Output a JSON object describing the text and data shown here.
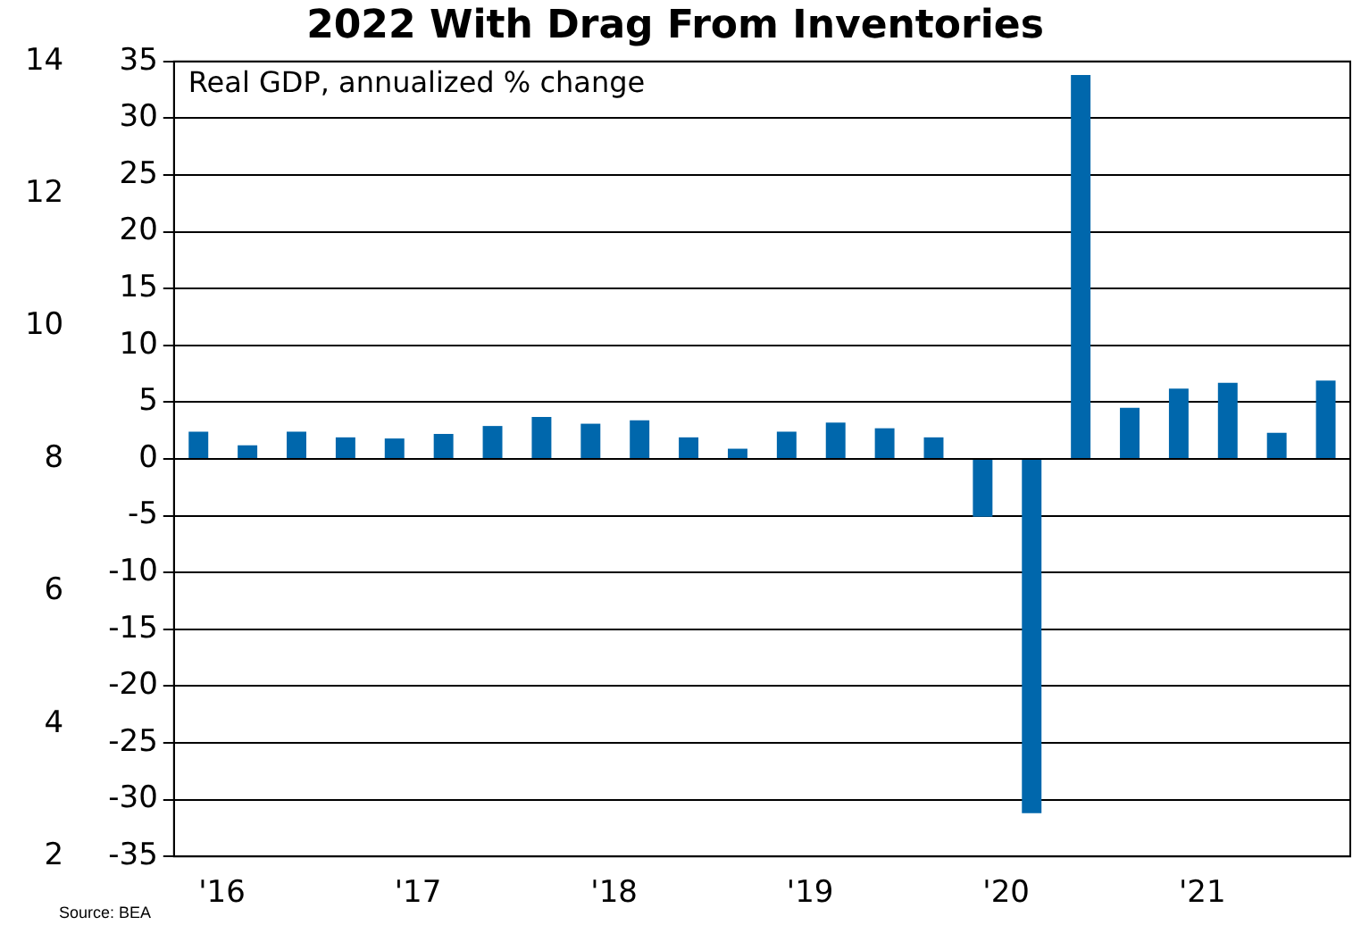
{
  "chart_data": {
    "type": "bar",
    "title": "2022 With Drag From Inventories",
    "categories": [
      "'16",
      null,
      null,
      null,
      "'17",
      null,
      null,
      null,
      "'18",
      null,
      null,
      null,
      "'19",
      null,
      null,
      null,
      "'20",
      null,
      null,
      null,
      "'21",
      null,
      null,
      null
    ],
    "values": [
      2.4,
      1.2,
      2.4,
      1.9,
      1.8,
      2.2,
      2.9,
      3.7,
      3.1,
      3.4,
      1.9,
      0.9,
      2.4,
      3.2,
      2.7,
      1.9,
      -5.1,
      -31.2,
      33.8,
      4.5,
      6.2,
      6.7,
      2.3,
      6.9
    ],
    "color": "#0067ac",
    "ylim": [
      -35,
      35
    ],
    "yticks": [
      -35,
      -30,
      -25,
      -20,
      -15,
      -10,
      -5,
      0,
      5,
      10,
      15,
      20,
      25,
      30,
      35
    ],
    "y2lim": [
      2,
      14
    ],
    "y2ticks": [
      2,
      4,
      6,
      8,
      10,
      12,
      14
    ],
    "grid": "y",
    "legend": false,
    "annotations": [
      "Real GDP, annualized % change",
      "Source: BEA"
    ]
  }
}
